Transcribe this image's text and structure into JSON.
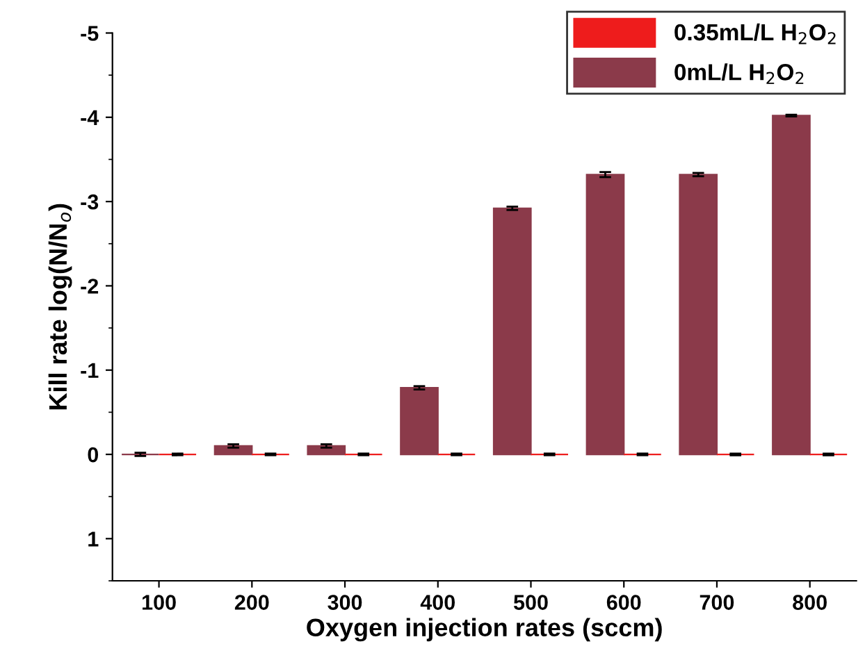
{
  "chart_data": {
    "type": "bar",
    "xlabel": "Oxygen injection rates (sccm)",
    "ylabel": "Kill rate log(N/N$_{o}$)",
    "categories": [
      "100",
      "200",
      "300",
      "400",
      "500",
      "600",
      "700",
      "800"
    ],
    "series": [
      {
        "name": "0mL/L H$_{2}$O$_{2}$",
        "color": "#8b3a4a",
        "values": [
          0.0,
          -0.1,
          -0.1,
          -0.79,
          -2.92,
          -3.32,
          -3.32,
          -4.02
        ],
        "errors": [
          0.02,
          0.02,
          0.02,
          0.02,
          0.02,
          0.03,
          0.02,
          0.01
        ]
      },
      {
        "name": "0.35mL/L H$_{2}$O$_{2}$",
        "color": "#ee1c1c",
        "values": [
          0.0,
          0.0,
          0.0,
          0.0,
          0.0,
          0.0,
          0.0,
          0.0
        ],
        "errors": [
          0.01,
          0.01,
          0.01,
          0.01,
          0.01,
          0.01,
          0.01,
          0.01
        ]
      }
    ],
    "ylim": [
      1.5,
      -5
    ],
    "yticks": [
      1,
      0,
      -1,
      -2,
      -3,
      -4,
      -5
    ],
    "grid": false,
    "legend": "top right"
  }
}
